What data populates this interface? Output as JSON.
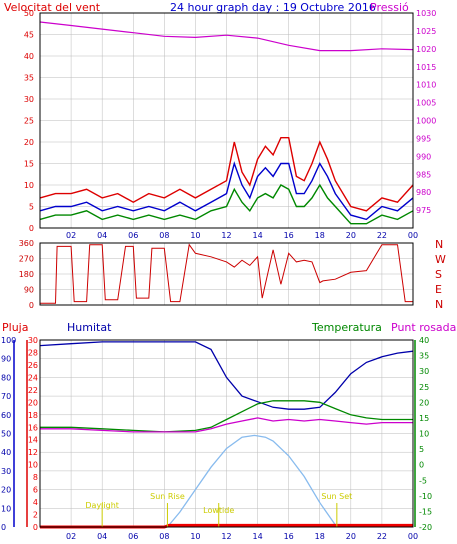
{
  "header": {
    "left_label": "Velocitat del vent",
    "title": "24 hour graph day : 19 Octubre 2016",
    "right_label": "Pressió"
  },
  "colors": {
    "wind": "#dd0000",
    "wind_avg": "#0000cc",
    "wind_min": "#008800",
    "pressure": "#cc00cc",
    "direction": "#cc0000",
    "humidity": "#0000aa",
    "temperature": "#008800",
    "dewpoint": "#cc00cc",
    "solar": "#88bbee",
    "rain": "#ee0000",
    "annotation": "#cccc00",
    "grid": "#bbbbbb",
    "frame": "#000000"
  },
  "chart_data": [
    {
      "type": "line",
      "name": "wind-and-pressure",
      "left_ylabel": "Velocitat del vent",
      "right_ylabel": "Pressió",
      "x_ticks": [
        "02",
        "04",
        "06",
        "08",
        "10",
        "12",
        "14",
        "16",
        "18",
        "20",
        "22",
        "00"
      ],
      "xlim_hours": [
        0,
        24
      ],
      "ylim_left": [
        0,
        50
      ],
      "ylim_right": [
        970,
        1030
      ],
      "left_ticks": [
        "0",
        "5",
        "10",
        "15",
        "20",
        "25",
        "30",
        "35",
        "40",
        "45",
        "50"
      ],
      "right_ticks": [
        "975",
        "980",
        "985",
        "990",
        "995",
        "1000",
        "1005",
        "1010",
        "1015",
        "1020",
        "1025",
        "1030"
      ],
      "grid": true,
      "x_hours": [
        0,
        1,
        2,
        3,
        4,
        5,
        6,
        7,
        8,
        9,
        10,
        11,
        12,
        12.5,
        13,
        13.5,
        14,
        14.5,
        15,
        15.5,
        16,
        16.5,
        17,
        17.5,
        18,
        18.5,
        19,
        20,
        21,
        22,
        23,
        24
      ],
      "series": [
        {
          "role": "gust",
          "values": [
            7,
            8,
            8,
            9,
            7,
            8,
            6,
            8,
            7,
            9,
            7,
            9,
            11,
            20,
            13,
            10,
            16,
            19,
            17,
            21,
            21,
            12,
            11,
            15,
            20,
            16,
            11,
            5,
            4,
            7,
            6,
            10
          ]
        },
        {
          "role": "average",
          "values": [
            4,
            5,
            5,
            6,
            4,
            5,
            4,
            5,
            4,
            6,
            4,
            6,
            8,
            15,
            10,
            7,
            12,
            14,
            12,
            15,
            15,
            8,
            8,
            11,
            15,
            12,
            8,
            3,
            2,
            5,
            4,
            7
          ]
        },
        {
          "role": "lull",
          "values": [
            2,
            3,
            3,
            4,
            2,
            3,
            2,
            3,
            2,
            3,
            2,
            4,
            5,
            9,
            6,
            4,
            7,
            8,
            7,
            10,
            9,
            5,
            5,
            7,
            10,
            7,
            5,
            1,
            1,
            3,
            2,
            4
          ]
        },
        {
          "role": "pressure",
          "axis": "right",
          "x_hours": [
            0,
            2,
            4,
            6,
            8,
            10,
            12,
            14,
            16,
            18,
            20,
            22,
            24
          ],
          "values": [
            1027.5,
            1026.5,
            1025.5,
            1024.5,
            1023.5,
            1023.2,
            1023.8,
            1023,
            1021,
            1019.5,
            1019.5,
            1020,
            1019.8
          ]
        }
      ]
    },
    {
      "type": "line",
      "name": "wind-direction",
      "right_labels": [
        "N",
        "W",
        "S",
        "E",
        "N"
      ],
      "ylim": [
        0,
        360
      ],
      "ticks": [
        "0",
        "90",
        "180",
        "270",
        "360"
      ],
      "x_hours": [
        0,
        1,
        1.1,
        2,
        2.2,
        3,
        3.2,
        4,
        4.2,
        5,
        5.5,
        6,
        6.2,
        7,
        7.2,
        8,
        8.4,
        9,
        9.6,
        10,
        11,
        12,
        12.5,
        13,
        13.5,
        14,
        14.3,
        15,
        15.5,
        16,
        16.5,
        17,
        17.5,
        18,
        18.2,
        19,
        20,
        21,
        22,
        23,
        23.5,
        24
      ],
      "values": [
        10,
        10,
        340,
        340,
        20,
        20,
        350,
        350,
        30,
        30,
        340,
        340,
        40,
        40,
        330,
        330,
        20,
        20,
        350,
        300,
        280,
        250,
        220,
        260,
        230,
        280,
        40,
        320,
        120,
        300,
        250,
        260,
        250,
        130,
        140,
        150,
        190,
        200,
        350,
        350,
        20,
        20
      ]
    },
    {
      "type": "line",
      "name": "humidity-temperature",
      "labels": {
        "rain": "Pluja",
        "humidity": "Humitat",
        "temperature": "Temperatura",
        "dewpoint": "Punt rosada"
      },
      "humidity_ticks": [
        "0",
        "10",
        "20",
        "30",
        "40",
        "50",
        "60",
        "70",
        "80",
        "90",
        "100"
      ],
      "rain_ticks": [
        "0",
        "2",
        "4",
        "6",
        "8",
        "10",
        "12",
        "14",
        "16",
        "18",
        "20",
        "22",
        "24",
        "26",
        "28",
        "30"
      ],
      "temperature_ticks": [
        "-20",
        "-15",
        "-10",
        "-5",
        "0",
        "5",
        "10",
        "15",
        "20",
        "25",
        "30",
        "35",
        "40"
      ],
      "ylim_humidity": [
        0,
        100
      ],
      "ylim_temperature": [
        -20,
        40
      ],
      "ylim_rain": [
        0,
        30
      ],
      "x_ticks": [
        "02",
        "04",
        "06",
        "08",
        "10",
        "12",
        "14",
        "16",
        "18",
        "20",
        "22",
        "00"
      ],
      "annotations": [
        {
          "label": "Sun Rise",
          "hour": 8.2
        },
        {
          "label": "Sun Set",
          "hour": 19.1
        },
        {
          "label": "Daylight",
          "hour": 4.0
        },
        {
          "label": "Lowtide",
          "hour": 11.5
        }
      ],
      "series": [
        {
          "role": "humidity",
          "x_hours": [
            0,
            2,
            4,
            6,
            8,
            10,
            11,
            12,
            13,
            14,
            15,
            16,
            17,
            18,
            19,
            20,
            21,
            22,
            23,
            24
          ],
          "values": [
            97,
            98,
            99,
            99,
            99,
            99,
            95,
            80,
            70,
            67,
            64,
            63,
            63,
            64,
            72,
            82,
            88,
            91,
            93,
            94
          ]
        },
        {
          "role": "temperature",
          "axis": "temperature",
          "x_hours": [
            0,
            2,
            4,
            6,
            8,
            10,
            11,
            12,
            13,
            14,
            15,
            16,
            17,
            18,
            19,
            20,
            21,
            22,
            23,
            24
          ],
          "values": [
            12,
            12,
            11.5,
            11,
            10.5,
            11,
            12,
            14.5,
            17,
            19.5,
            20.5,
            20.5,
            20.5,
            20,
            18,
            16,
            15,
            14.5,
            14.5,
            14.5
          ]
        },
        {
          "role": "dewpoint",
          "axis": "temperature",
          "x_hours": [
            0,
            2,
            4,
            6,
            8,
            10,
            11,
            12,
            13,
            14,
            15,
            16,
            17,
            18,
            19,
            20,
            21,
            22,
            23,
            24
          ],
          "values": [
            11.5,
            11.5,
            11,
            10.5,
            10.5,
            10.5,
            11.5,
            13,
            14,
            15,
            14,
            14.5,
            14,
            14.5,
            14,
            13.5,
            13,
            13.5,
            13.5,
            13.5
          ]
        },
        {
          "role": "solar",
          "axis": "humidity",
          "x_hours": [
            8.2,
            9,
            10,
            11,
            12,
            13,
            13.8,
            14.5,
            15,
            16,
            17,
            18,
            19.1
          ],
          "values": [
            0,
            8,
            20,
            32,
            42,
            48,
            49,
            48,
            46,
            38,
            27,
            13,
            0
          ]
        },
        {
          "role": "rain",
          "axis": "rain",
          "x_hours": [
            0,
            8,
            8.3,
            19,
            24
          ],
          "values": [
            0,
            0,
            0.25,
            0.25,
            0.25
          ]
        }
      ]
    }
  ]
}
